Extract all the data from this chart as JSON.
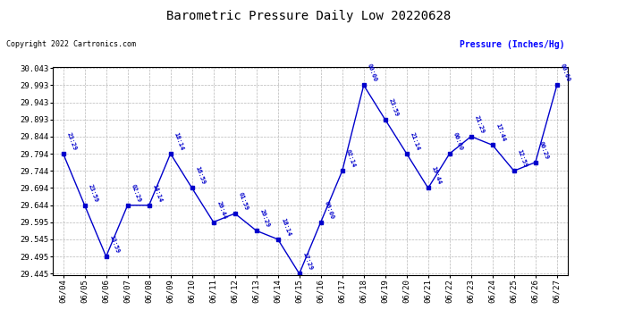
{
  "title": "Barometric Pressure Daily Low 20220628",
  "ylabel": "Pressure (Inches/Hg)",
  "copyright": "Copyright 2022 Cartronics.com",
  "line_color": "#0000CC",
  "background_color": "#ffffff",
  "grid_color": "#b0b0b0",
  "ylim_min": 29.445,
  "ylim_max": 30.043,
  "yticks": [
    29.445,
    29.495,
    29.545,
    29.595,
    29.644,
    29.694,
    29.744,
    29.794,
    29.844,
    29.893,
    29.943,
    29.993,
    30.043
  ],
  "dates": [
    "06/04",
    "06/05",
    "06/06",
    "06/07",
    "06/08",
    "06/09",
    "06/10",
    "06/11",
    "06/12",
    "06/13",
    "06/14",
    "06/15",
    "06/16",
    "06/17",
    "06/18",
    "06/19",
    "06/20",
    "06/21",
    "06/22",
    "06/23",
    "06/24",
    "06/25",
    "06/26",
    "06/27"
  ],
  "values": [
    29.794,
    29.644,
    29.495,
    29.644,
    29.644,
    29.794,
    29.694,
    29.595,
    29.62,
    29.57,
    29.545,
    29.445,
    29.595,
    29.744,
    29.993,
    29.893,
    29.794,
    29.694,
    29.794,
    29.844,
    29.819,
    29.744,
    29.769,
    29.993
  ],
  "time_labels": [
    "23:29",
    "23:59",
    "13:59",
    "02:29",
    "14:14",
    "18:14",
    "16:59",
    "20:44",
    "01:59",
    "20:29",
    "18:14",
    "17:29",
    "00:00",
    "02:14",
    "00:00",
    "23:59",
    "21:14",
    "19:44",
    "00:00",
    "21:29",
    "17:44",
    "12:59",
    "00:29",
    "00:00"
  ]
}
